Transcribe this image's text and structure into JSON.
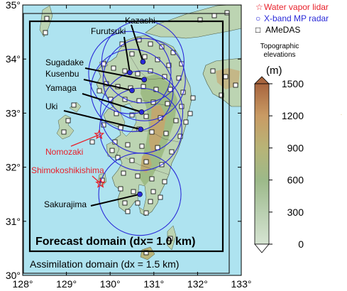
{
  "axes": {
    "x_ticks": [
      "128°",
      "129°",
      "130°",
      "131°",
      "132°",
      "133°"
    ],
    "y_ticks": [
      "35°",
      "34°",
      "33°",
      "32°",
      "31°",
      "30°"
    ]
  },
  "legend": {
    "lidar": "Water vapor lidar",
    "radar": "X-band MP radar",
    "amedas": "AMeDAS",
    "lidar_symbol": "☆",
    "radar_symbol": "○",
    "amedas_symbol": "□"
  },
  "colorbar": {
    "title_line1": "Topographic",
    "title_line2": "elevations",
    "unit": "(m)",
    "ticks": [
      "1500",
      "1200",
      "900",
      "600",
      "300",
      "0"
    ]
  },
  "domains": {
    "forecast": "Forecast domain (dx= 1.0 km)",
    "assimilation": "Assimilation domain  (dx =  1.5 km)"
  },
  "radar_sites": [
    {
      "name": "Kazashi",
      "lon": 130.75,
      "lat": 33.95
    },
    {
      "name": "Furutsuki",
      "lon": 130.45,
      "lat": 33.75
    },
    {
      "name": "Sugadake",
      "lon": 130.78,
      "lat": 33.62
    },
    {
      "name": "Kusenbu",
      "lon": 130.5,
      "lat": 33.42
    },
    {
      "name": "Yamaga",
      "lon": 130.72,
      "lat": 33.02
    },
    {
      "name": "Uki",
      "lon": 130.7,
      "lat": 32.7
    },
    {
      "name": "Sakurajima",
      "lon": 130.68,
      "lat": 31.5
    }
  ],
  "lidar_sites": [
    {
      "name": "Nomozaki",
      "lon": 129.75,
      "lat": 32.6
    },
    {
      "name": "Shimokoshikishima",
      "lon": 129.78,
      "lat": 31.7
    }
  ],
  "colors": {
    "sea": "#aee3f0",
    "land_low": "#c3d8ba",
    "land_mid": "#9fbc8a",
    "land_high": "#c69a5c",
    "radar": "#2a2ad8",
    "lidar": "#e8202a"
  }
}
